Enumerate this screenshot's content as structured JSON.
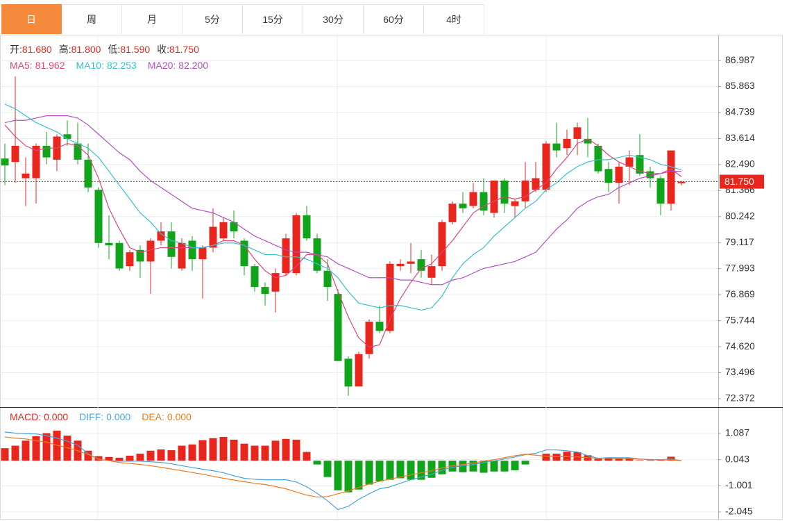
{
  "tabs": {
    "items": [
      "日",
      "周",
      "月",
      "5分",
      "15分",
      "30分",
      "60分",
      "4时"
    ],
    "active": 0
  },
  "chart_data": [
    {
      "type": "candlestick",
      "up_color": "#e8261d",
      "down_color": "#10a41a",
      "quote": [
        {
          "label": "开:",
          "value": "81.680"
        },
        {
          "label": "高:",
          "value": "81.800"
        },
        {
          "label": "低:",
          "value": "81.590"
        },
        {
          "label": "收:",
          "value": "81.750"
        }
      ],
      "open": [
        82.75,
        82.6,
        81.9,
        81.9,
        83.3,
        82.7,
        83.8,
        83.4,
        82.7,
        81.4,
        79.1,
        79.1,
        78.1,
        78.8,
        78.3,
        79.2,
        79.6,
        78.0,
        79.2,
        78.4,
        78.9,
        79.3,
        80.0,
        79.2,
        78.1,
        77.2,
        77.0,
        77.8,
        77.8,
        80.3,
        79.3,
        77.9,
        76.9,
        74.1,
        72.9,
        74.3,
        75.7,
        75.3,
        78.1,
        78.2,
        78.4,
        77.6,
        78.1,
        80.0,
        80.8,
        80.7,
        81.3,
        80.4,
        81.8,
        80.7,
        80.9,
        81.4,
        81.4,
        83.4,
        83.2,
        83.6,
        83.6,
        83.3,
        82.3,
        81.7,
        82.4,
        82.9,
        82.2,
        81.9,
        80.8,
        81.68
      ],
      "high": [
        83.4,
        86.3,
        82.8,
        83.4,
        83.9,
        83.8,
        84.4,
        84.3,
        83.4,
        81.5,
        80.3,
        79.2,
        78.8,
        79.0,
        79.3,
        80.0,
        80.0,
        79.3,
        79.4,
        79.0,
        80.6,
        80.2,
        80.5,
        79.3,
        78.2,
        77.4,
        78.0,
        79.5,
        80.4,
        80.7,
        79.5,
        78.4,
        77.1,
        74.2,
        74.4,
        75.8,
        76.4,
        78.3,
        78.4,
        79.1,
        78.8,
        78.6,
        80.1,
        80.9,
        81.3,
        81.7,
        81.9,
        81.8,
        81.9,
        81.0,
        82.6,
        82.6,
        83.5,
        84.3,
        84.0,
        84.3,
        84.5,
        83.4,
        82.6,
        82.6,
        83.1,
        83.8,
        82.4,
        82.0,
        83.1,
        81.8
      ],
      "low": [
        81.6,
        81.7,
        80.7,
        80.8,
        82.5,
        82.2,
        83.3,
        82.5,
        81.3,
        78.9,
        78.4,
        77.9,
        77.9,
        77.6,
        76.9,
        79.0,
        78.0,
        77.9,
        77.9,
        76.7,
        78.7,
        79.2,
        79.3,
        77.7,
        77.0,
        76.4,
        76.1,
        77.7,
        77.7,
        79.2,
        77.8,
        76.6,
        74.0,
        72.5,
        72.9,
        74.1,
        75.2,
        75.2,
        77.9,
        77.8,
        77.6,
        77.3,
        77.9,
        79.9,
        80.4,
        80.6,
        80.3,
        80.2,
        80.4,
        80.2,
        80.6,
        81.3,
        81.3,
        82.8,
        82.9,
        82.9,
        82.8,
        82.1,
        81.3,
        80.8,
        81.6,
        82.0,
        81.5,
        80.3,
        80.5,
        81.59
      ],
      "close": [
        82.45,
        83.3,
        82.1,
        83.3,
        82.8,
        83.7,
        83.6,
        82.7,
        81.5,
        79.1,
        79.0,
        78.0,
        78.7,
        78.3,
        79.2,
        79.6,
        78.5,
        79.1,
        78.4,
        78.9,
        79.8,
        80.0,
        79.6,
        78.1,
        77.2,
        76.9,
        77.8,
        79.3,
        80.3,
        79.3,
        77.9,
        77.2,
        74.0,
        72.9,
        74.3,
        75.7,
        75.3,
        78.2,
        78.2,
        78.3,
        77.9,
        78.1,
        80.0,
        80.8,
        80.6,
        81.3,
        80.5,
        81.8,
        80.8,
        80.9,
        81.8,
        81.9,
        83.4,
        83.1,
        83.6,
        84.1,
        83.4,
        82.2,
        81.7,
        82.4,
        82.8,
        82.1,
        81.9,
        80.8,
        83.1,
        81.75
      ],
      "series": [
        {
          "name": "MA5:",
          "latest": "81.962",
          "color": "#e0457b",
          "values": [
            84.2,
            83.7,
            83.3,
            83.1,
            83.2,
            83.2,
            83.4,
            83.3,
            82.9,
            81.9,
            80.6,
            79.7,
            78.9,
            78.7,
            78.8,
            78.9,
            78.9,
            78.9,
            78.9,
            78.9,
            79.0,
            79.2,
            79.2,
            79.0,
            78.4,
            77.9,
            77.6,
            77.7,
            78.1,
            78.6,
            78.6,
            78.2,
            77.0,
            75.9,
            75.0,
            74.6,
            74.7,
            75.8,
            76.7,
            77.4,
            78.0,
            78.2,
            78.7,
            79.2,
            79.8,
            80.4,
            80.7,
            80.9,
            81.1,
            81.0,
            81.1,
            81.4,
            81.7,
            82.3,
            82.8,
            83.4,
            83.6,
            83.3,
            82.9,
            82.6,
            82.4,
            82.2,
            82.1,
            82.1,
            82.3,
            81.962
          ]
        },
        {
          "name": "MA10:",
          "latest": "82.253",
          "color": "#36c0d0",
          "values": [
            85.1,
            84.9,
            84.6,
            84.3,
            84.1,
            83.9,
            83.6,
            83.4,
            83.2,
            82.8,
            82.2,
            81.6,
            81.0,
            80.4,
            80.0,
            79.5,
            79.2,
            79.1,
            78.9,
            78.9,
            79.0,
            79.1,
            79.1,
            79.0,
            78.8,
            78.6,
            78.6,
            78.5,
            78.5,
            78.4,
            78.2,
            78.0,
            77.6,
            77.0,
            76.5,
            76.4,
            76.3,
            76.4,
            76.4,
            76.3,
            76.2,
            76.3,
            76.8,
            77.6,
            78.2,
            78.6,
            78.9,
            79.4,
            79.8,
            80.2,
            80.6,
            80.9,
            81.4,
            81.7,
            82.1,
            82.4,
            82.6,
            82.7,
            82.7,
            82.8,
            82.9,
            82.8,
            82.7,
            82.5,
            82.4,
            82.253
          ]
        },
        {
          "name": "MA20:",
          "latest": "82.200",
          "color": "#b050c0",
          "values": [
            84.3,
            84.4,
            84.4,
            84.5,
            84.6,
            84.6,
            84.6,
            84.5,
            84.2,
            83.8,
            83.4,
            83.0,
            82.7,
            82.2,
            81.8,
            81.5,
            81.2,
            80.9,
            80.6,
            80.5,
            80.4,
            80.2,
            80.0,
            79.7,
            79.4,
            79.2,
            79.0,
            78.8,
            78.7,
            78.7,
            78.6,
            78.5,
            78.2,
            78.0,
            77.8,
            77.6,
            77.6,
            77.6,
            77.5,
            77.5,
            77.4,
            77.3,
            77.3,
            77.5,
            77.6,
            77.8,
            78.0,
            78.1,
            78.2,
            78.3,
            78.5,
            78.7,
            79.2,
            79.7,
            80.1,
            80.6,
            80.9,
            81.1,
            81.2,
            81.5,
            81.7,
            81.9,
            82.0,
            82.1,
            82.2,
            82.2
          ]
        }
      ],
      "last_price": {
        "value": 81.75,
        "label": "81.750"
      },
      "ylim": [
        72.01,
        88.07
      ],
      "yticks": [
        86.987,
        85.863,
        84.739,
        83.614,
        {
          "value": 82.49,
          "label": "82.490"
        },
        81.366,
        80.242,
        79.117,
        77.993,
        76.869,
        75.744,
        {
          "value": 74.62,
          "label": "74.620"
        },
        73.496,
        72.372
      ],
      "grid": true
    },
    {
      "type": "macd",
      "up_color": "#e8261d",
      "down_color": "#10a41a",
      "series": [
        {
          "name": "MACD:",
          "latest": "0.000",
          "color": "#e8261d",
          "style": "bar",
          "values": [
            0.5,
            0.6,
            0.8,
            0.98,
            1.1,
            1.2,
            1.0,
            0.8,
            0.4,
            0.18,
            0.15,
            0.12,
            0.2,
            0.28,
            0.4,
            0.45,
            0.42,
            0.6,
            0.65,
            0.82,
            0.9,
            0.95,
            0.84,
            0.68,
            0.6,
            0.6,
            0.8,
            0.87,
            0.84,
            0.35,
            -0.15,
            -0.65,
            -1.18,
            -1.26,
            -1.15,
            -0.95,
            -0.82,
            -0.76,
            -0.7,
            -0.76,
            -0.76,
            -0.68,
            -0.54,
            -0.43,
            -0.46,
            -0.43,
            -0.48,
            -0.43,
            -0.43,
            -0.38,
            -0.15,
            0.0,
            0.28,
            0.28,
            0.36,
            0.34,
            0.22,
            0.08,
            0.1,
            0.1,
            0.1,
            0.02,
            0.02,
            0.02,
            0.16,
            0.0
          ]
        },
        {
          "name": "DIFF:",
          "latest": "0.000",
          "color": "#4aa3df",
          "style": "line",
          "values": [
            1.15,
            1.1,
            1.08,
            1.07,
            1.0,
            0.9,
            0.78,
            0.62,
            0.28,
            0.06,
            0.0,
            -0.02,
            -0.02,
            -0.02,
            -0.04,
            -0.07,
            -0.12,
            -0.2,
            -0.27,
            -0.34,
            -0.4,
            -0.48,
            -0.6,
            -0.7,
            -0.74,
            -0.76,
            -0.76,
            -0.76,
            -0.85,
            -1.04,
            -1.3,
            -1.6,
            -1.95,
            -1.82,
            -1.54,
            -1.32,
            -1.12,
            -1.04,
            -0.9,
            -0.76,
            -0.65,
            -0.54,
            -0.38,
            -0.26,
            -0.2,
            -0.15,
            -0.07,
            -0.01,
            0.07,
            0.15,
            0.24,
            0.3,
            0.43,
            0.43,
            0.4,
            0.35,
            0.2,
            0.1,
            0.12,
            0.12,
            0.12,
            0.07,
            0.04,
            0.04,
            0.07,
            0.0
          ]
        },
        {
          "name": "DEA:",
          "latest": "0.000",
          "color": "#f07a1e",
          "style": "line",
          "values": [
            0.95,
            0.9,
            0.87,
            0.8,
            0.74,
            0.62,
            0.52,
            0.4,
            0.25,
            0.07,
            0.0,
            -0.07,
            -0.11,
            -0.15,
            -0.2,
            -0.26,
            -0.33,
            -0.4,
            -0.47,
            -0.54,
            -0.62,
            -0.7,
            -0.77,
            -0.84,
            -0.9,
            -0.95,
            -1.03,
            -1.12,
            -1.25,
            -1.37,
            -1.45,
            -1.43,
            -1.32,
            -1.2,
            -1.07,
            -0.93,
            -0.82,
            -0.73,
            -0.65,
            -0.57,
            -0.48,
            -0.4,
            -0.29,
            -0.2,
            -0.15,
            -0.1,
            -0.01,
            0.04,
            0.12,
            0.2,
            0.26,
            0.22,
            0.18,
            0.16,
            0.16,
            0.15,
            0.12,
            0.1,
            0.1,
            0.08,
            0.08,
            0.06,
            0.05,
            0.04,
            0.03,
            0.0
          ]
        }
      ],
      "ylim": [
        -2.35,
        2.085
      ],
      "yticks": [
        1.087,
        0.043,
        -1.001,
        -2.045
      ],
      "grid": true
    }
  ]
}
